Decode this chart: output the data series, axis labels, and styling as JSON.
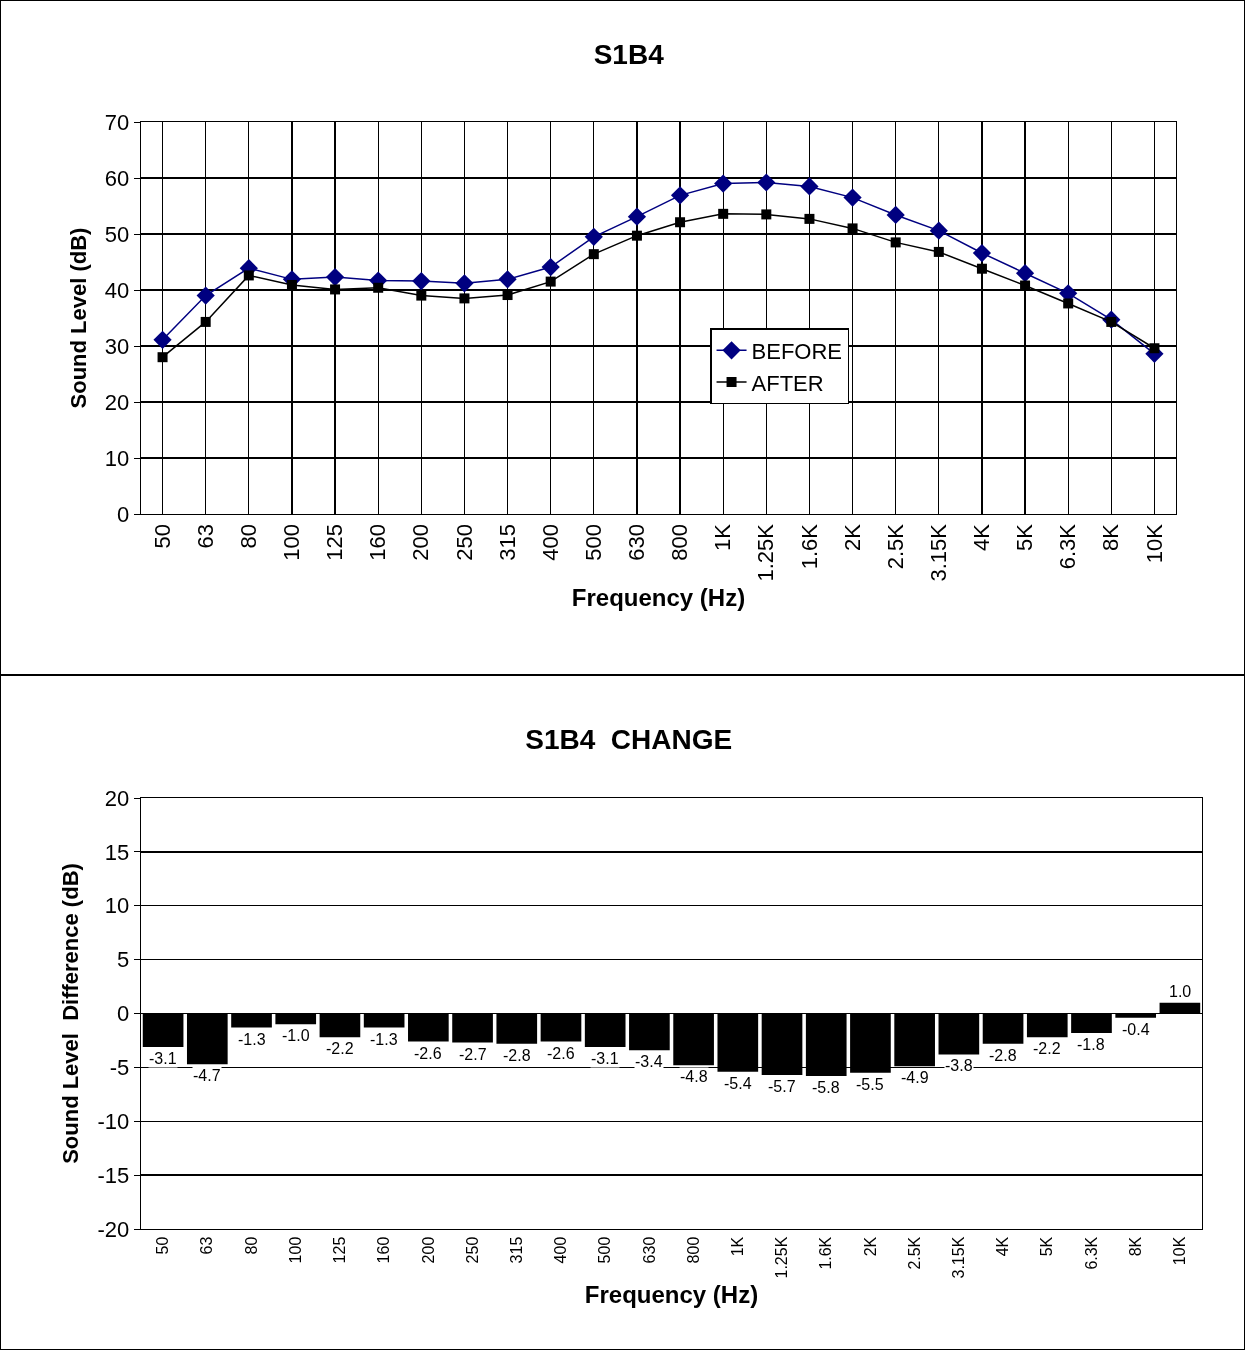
{
  "chart_data": [
    {
      "type": "line",
      "title": "S1B4",
      "xlabel": "Frequency (Hz)",
      "ylabel": "Sound Level (dB)",
      "categories": [
        "50",
        "63",
        "80",
        "100",
        "125",
        "160",
        "200",
        "250",
        "315",
        "400",
        "500",
        "630",
        "800",
        "1K",
        "1.25K",
        "1.6K",
        "2K",
        "2.5K",
        "3.15K",
        "4K",
        "5K",
        "6.3K",
        "8K",
        "10K"
      ],
      "series": [
        {
          "name": "BEFORE",
          "color": "#000080",
          "marker": "diamond",
          "values": [
            31.1,
            39.0,
            43.9,
            41.9,
            42.3,
            41.7,
            41.6,
            41.2,
            41.9,
            44.1,
            49.5,
            53.1,
            56.9,
            59.0,
            59.2,
            58.5,
            56.5,
            53.4,
            50.6,
            46.6,
            43.0,
            39.4,
            34.7,
            28.6
          ]
        },
        {
          "name": "AFTER",
          "color": "#000000",
          "marker": "square",
          "values": [
            28.0,
            34.3,
            42.6,
            40.9,
            40.1,
            40.4,
            39.0,
            38.5,
            39.1,
            41.5,
            46.4,
            49.7,
            52.1,
            53.6,
            53.5,
            52.7,
            51.0,
            48.5,
            46.8,
            43.8,
            40.8,
            37.6,
            34.3,
            29.6
          ]
        }
      ],
      "ylim": [
        0,
        70
      ],
      "yticks": [
        0,
        10,
        20,
        30,
        40,
        50,
        60,
        70
      ],
      "grid": true,
      "legend": "center"
    },
    {
      "type": "bar",
      "title": "S1B4  CHANGE",
      "xlabel": "Frequency (Hz)",
      "ylabel": "Sound Level  Difference (dB)",
      "categories": [
        "50",
        "63",
        "80",
        "100",
        "125",
        "160",
        "200",
        "250",
        "315",
        "400",
        "500",
        "630",
        "800",
        "1K",
        "1.25K",
        "1.6K",
        "2K",
        "2.5K",
        "3.15K",
        "4K",
        "5K",
        "6.3K",
        "8K",
        "10K"
      ],
      "values": [
        -3.1,
        -4.7,
        -1.3,
        -1.0,
        -2.2,
        -1.3,
        -2.6,
        -2.7,
        -2.8,
        -2.6,
        -3.1,
        -3.4,
        -4.8,
        -5.4,
        -5.7,
        -5.8,
        -5.5,
        -4.9,
        -3.8,
        -2.8,
        -2.2,
        -1.8,
        -0.4,
        1.0
      ],
      "value_labels": [
        "-3.1",
        "-4.7",
        "-1.3",
        "-1.0",
        "-2.2",
        "-1.3",
        "-2.6",
        "-2.7",
        "-2.8",
        "-2.6",
        "-3.1",
        "-3.4",
        "-4.8",
        "-5.4",
        "-5.7",
        "-5.8",
        "-5.5",
        "-4.9",
        "-3.8",
        "-2.8",
        "-2.2",
        "-1.8",
        "-0.4",
        "1.0"
      ],
      "color": "#000000",
      "ylim": [
        -20,
        20
      ],
      "yticks": [
        -20,
        -15,
        -10,
        -5,
        0,
        5,
        10,
        15,
        20
      ],
      "grid": "y",
      "legend": false
    }
  ]
}
